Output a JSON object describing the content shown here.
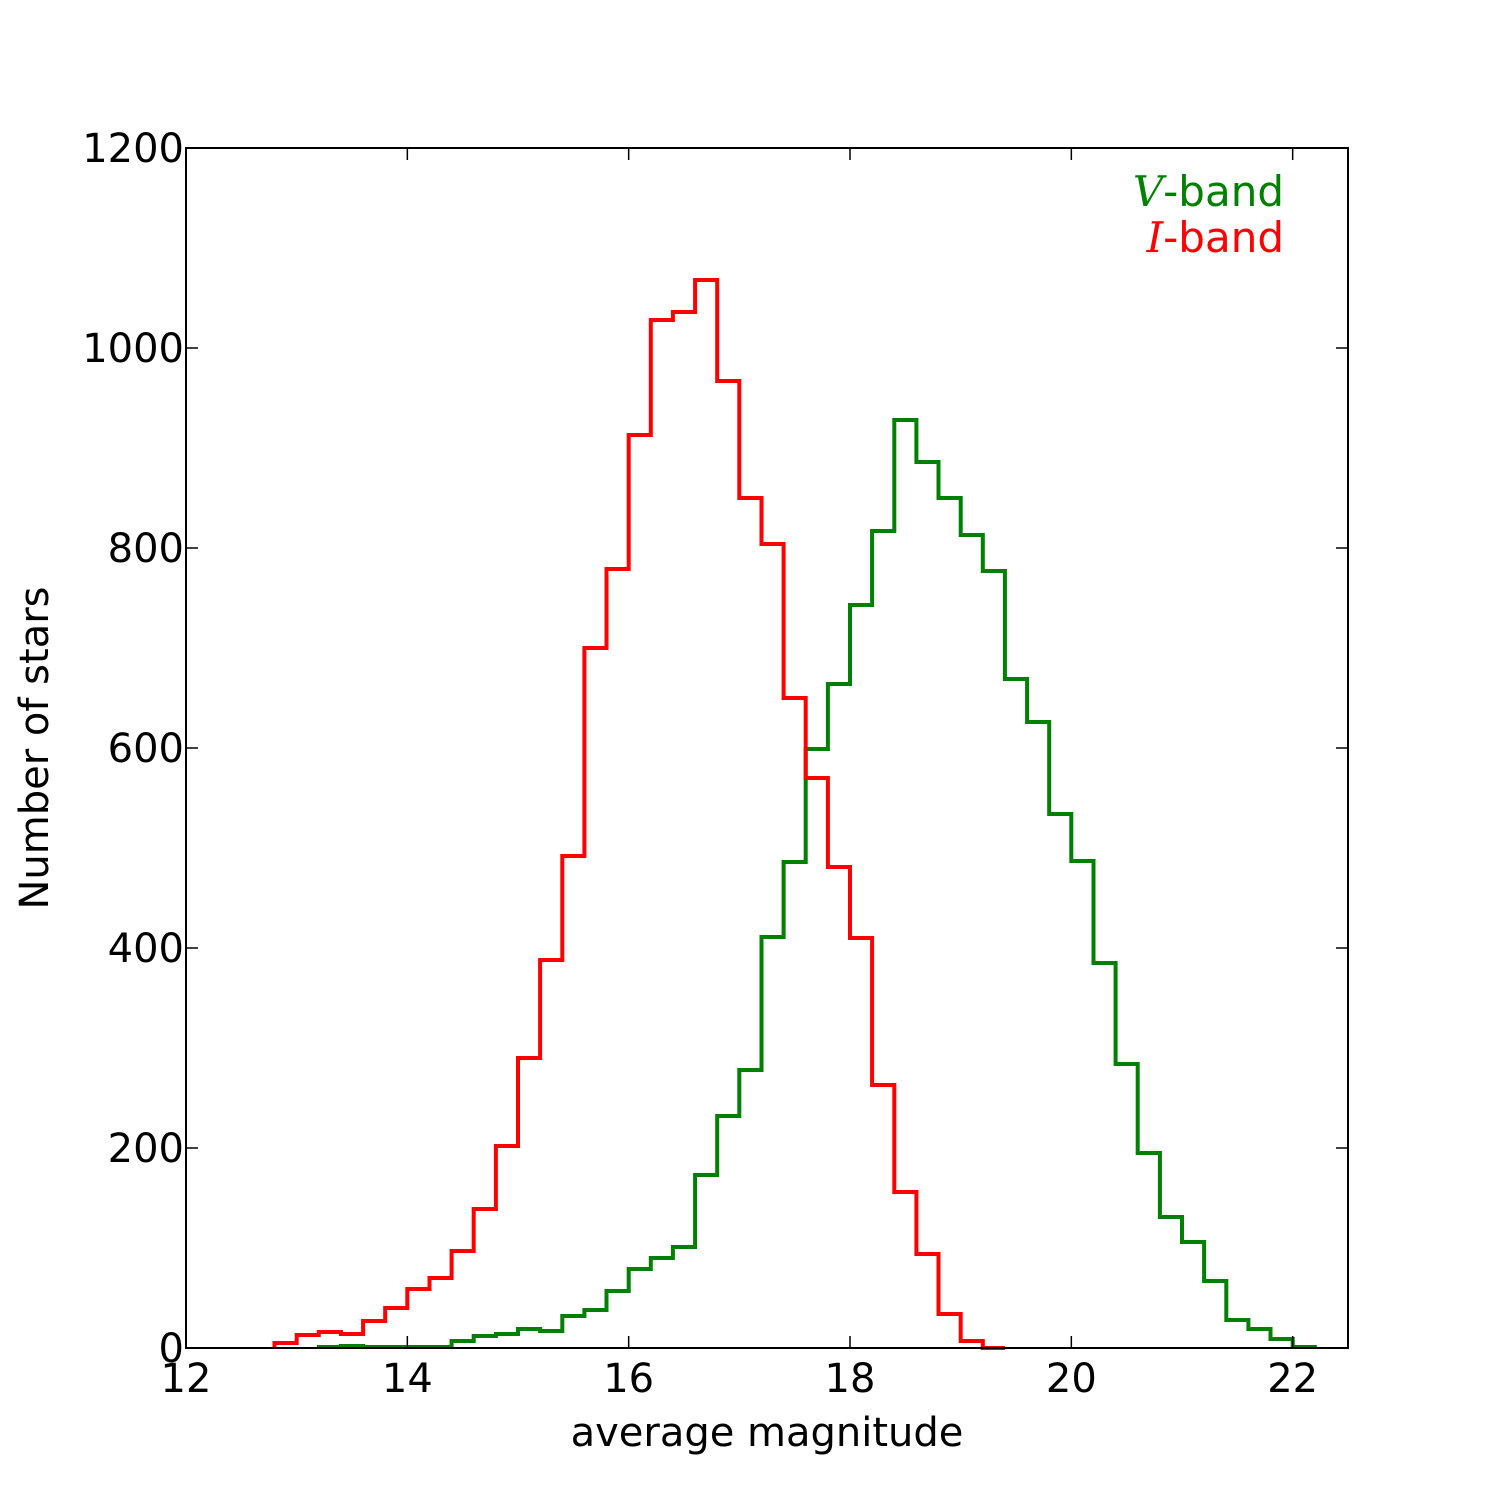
{
  "chart_data": {
    "type": "histogram",
    "xlabel": "average magnitude",
    "ylabel": "Number of stars",
    "xlim": [
      12,
      22.5
    ],
    "ylim": [
      0,
      1200
    ],
    "xticks": [
      12,
      14,
      16,
      18,
      20,
      22
    ],
    "yticks": [
      0,
      200,
      400,
      600,
      800,
      1000,
      1200
    ],
    "grid": false,
    "legend_position": "top-right",
    "series": [
      {
        "name_prefix": "V",
        "name_suffix": "-band",
        "color": "#008000",
        "bin_edges": [
          13.2,
          13.4,
          13.6,
          13.8,
          14.0,
          14.2,
          14.4,
          14.6,
          14.8,
          15.0,
          15.2,
          15.4,
          15.6,
          15.8,
          16.0,
          16.2,
          16.4,
          16.6,
          16.8,
          17.0,
          17.2,
          17.4,
          17.6,
          17.8,
          18.0,
          18.2,
          18.4,
          18.6,
          18.8,
          19.0,
          19.2,
          19.4,
          19.6,
          19.8,
          20.0,
          20.2,
          20.4,
          20.6,
          20.8,
          21.0,
          21.2,
          21.4,
          21.6,
          21.8,
          22.0,
          22.2
        ],
        "counts": [
          1,
          2,
          1,
          1,
          1,
          1,
          7,
          12,
          14,
          19,
          17,
          32,
          38,
          57,
          79,
          90,
          101,
          173,
          232,
          278,
          411,
          486,
          599,
          664,
          743,
          817,
          928,
          886,
          850,
          813,
          777,
          669,
          626,
          534,
          487,
          385,
          284,
          195,
          131,
          106,
          67,
          28,
          19,
          9,
          1
        ]
      },
      {
        "name_prefix": "I",
        "name_suffix": "-band",
        "color": "#ff0000",
        "bin_edges": [
          12.8,
          13.0,
          13.2,
          13.4,
          13.6,
          13.8,
          14.0,
          14.2,
          14.4,
          14.6,
          14.8,
          15.0,
          15.2,
          15.4,
          15.6,
          15.8,
          16.0,
          16.2,
          16.4,
          16.6,
          16.8,
          17.0,
          17.2,
          17.4,
          17.6,
          17.8,
          18.0,
          18.2,
          18.4,
          18.6,
          18.8,
          19.0,
          19.2,
          19.4
        ],
        "counts": [
          5,
          13,
          16,
          14,
          27,
          40,
          59,
          70,
          97,
          139,
          202,
          290,
          388,
          492,
          700,
          779,
          913,
          1028,
          1036,
          1068,
          967,
          850,
          804,
          650,
          570,
          481,
          410,
          263,
          156,
          94,
          34,
          7,
          0
        ]
      }
    ]
  }
}
